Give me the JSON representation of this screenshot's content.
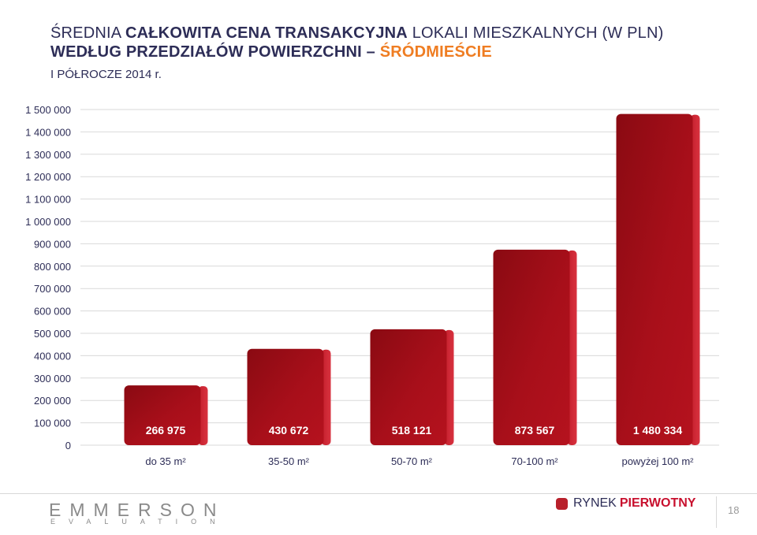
{
  "header": {
    "title_part1": "ŚREDNIA ",
    "title_part2": "CAŁKOWITA CENA TRANSAKCYJNA",
    "title_part3": " LOKALI MIESZKALNYCH (W PLN)",
    "title_line2": "WEDŁUG PRZEDZIAŁÓW POWIERZCHNI – ",
    "title_accent": "ŚRÓDMIEŚCIE",
    "subtitle": "I PÓŁROCZE 2014 r."
  },
  "chart_data": {
    "type": "bar",
    "categories": [
      "do 35 m²",
      "35-50 m²",
      "50-70 m²",
      "70-100 m²",
      "powyżej 100 m²"
    ],
    "values": [
      266975,
      430672,
      518121,
      873567,
      1480334
    ],
    "value_labels": [
      "266 975",
      "430 672",
      "518 121",
      "873 567",
      "1 480 334"
    ],
    "y_ticks": [
      "0",
      "100 000",
      "200 000",
      "300 000",
      "400 000",
      "500 000",
      "600 000",
      "700 000",
      "800 000",
      "900 000",
      "1 000 000",
      "1 100 000",
      "1 200 000",
      "1 300 000",
      "1 400 000",
      "1 500 000"
    ],
    "ylim": [
      0,
      1500000
    ],
    "tick_step": 100000,
    "grid": true,
    "bar_color": "#a80f1a"
  },
  "footer": {
    "logo_main": "EMMERSON",
    "logo_sub": "EVALUATION",
    "legend_label1": "RYNEK",
    "legend_label2": "PIERWOTNY",
    "page_number": "18"
  },
  "colors": {
    "title": "#2d2d57",
    "accent": "#ef7d22",
    "bar": "#a80f1a",
    "legend": "#c8102e"
  }
}
